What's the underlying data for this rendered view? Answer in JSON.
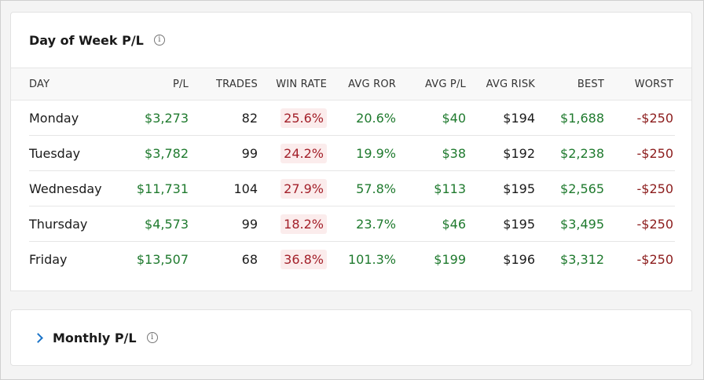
{
  "day_of_week": {
    "title": "Day of Week P/L",
    "info_icon": "info-icon",
    "columns": {
      "day": "DAY",
      "pl": "P/L",
      "trades": "TRADES",
      "win_rate": "WIN RATE",
      "avg_ror": "AVG ROR",
      "avg_pl": "AVG P/L",
      "avg_risk": "AVG RISK",
      "best": "BEST",
      "worst": "WORST"
    },
    "rows": [
      {
        "day": "Monday",
        "pl": "$3,273",
        "trades": "82",
        "win_rate": "25.6%",
        "avg_ror": "20.6%",
        "avg_pl": "$40",
        "avg_risk": "$194",
        "best": "$1,688",
        "worst": "-$250"
      },
      {
        "day": "Tuesday",
        "pl": "$3,782",
        "trades": "99",
        "win_rate": "24.2%",
        "avg_ror": "19.9%",
        "avg_pl": "$38",
        "avg_risk": "$192",
        "best": "$2,238",
        "worst": "-$250"
      },
      {
        "day": "Wednesday",
        "pl": "$11,731",
        "trades": "104",
        "win_rate": "27.9%",
        "avg_ror": "57.8%",
        "avg_pl": "$113",
        "avg_risk": "$195",
        "best": "$2,565",
        "worst": "-$250"
      },
      {
        "day": "Thursday",
        "pl": "$4,573",
        "trades": "99",
        "win_rate": "18.2%",
        "avg_ror": "23.7%",
        "avg_pl": "$46",
        "avg_risk": "$195",
        "best": "$3,495",
        "worst": "-$250"
      },
      {
        "day": "Friday",
        "pl": "$13,507",
        "trades": "68",
        "win_rate": "36.8%",
        "avg_ror": "101.3%",
        "avg_pl": "$199",
        "avg_risk": "$196",
        "best": "$3,312",
        "worst": "-$250"
      }
    ]
  },
  "monthly": {
    "title": "Monthly P/L",
    "expand_icon": "chevron-right-icon",
    "info_icon": "info-icon"
  },
  "colors": {
    "positive": "#1f7a2e",
    "negative": "#8c1c1c",
    "badge_bg": "#fbecec",
    "accent": "#1a73c8"
  }
}
